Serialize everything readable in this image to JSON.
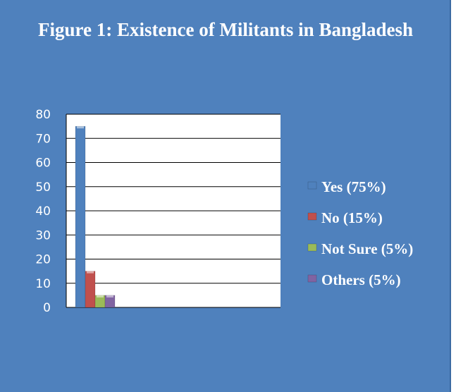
{
  "chart_data": {
    "type": "bar",
    "title": "Figure 1: Existence of Militants in Bangladesh",
    "categories": [
      ""
    ],
    "series": [
      {
        "name": "Yes (75%)",
        "values": [
          75
        ],
        "color": "#4f81bd"
      },
      {
        "name": "No (15%)",
        "values": [
          15
        ],
        "color": "#c0504d"
      },
      {
        "name": "Not Sure (5%)",
        "values": [
          5
        ],
        "color": "#9bbb59"
      },
      {
        "name": "Others (5%)",
        "values": [
          5
        ],
        "color": "#8064a2"
      }
    ],
    "ylim": [
      0,
      80
    ],
    "yticks": [
      0,
      10,
      20,
      30,
      40,
      50,
      60,
      70,
      80
    ],
    "grid": true,
    "legend_position": "right",
    "data_labels": false
  },
  "colors": {
    "background": "#4f81bd",
    "plot_area": "#ffffff",
    "text": "#ffffff"
  }
}
